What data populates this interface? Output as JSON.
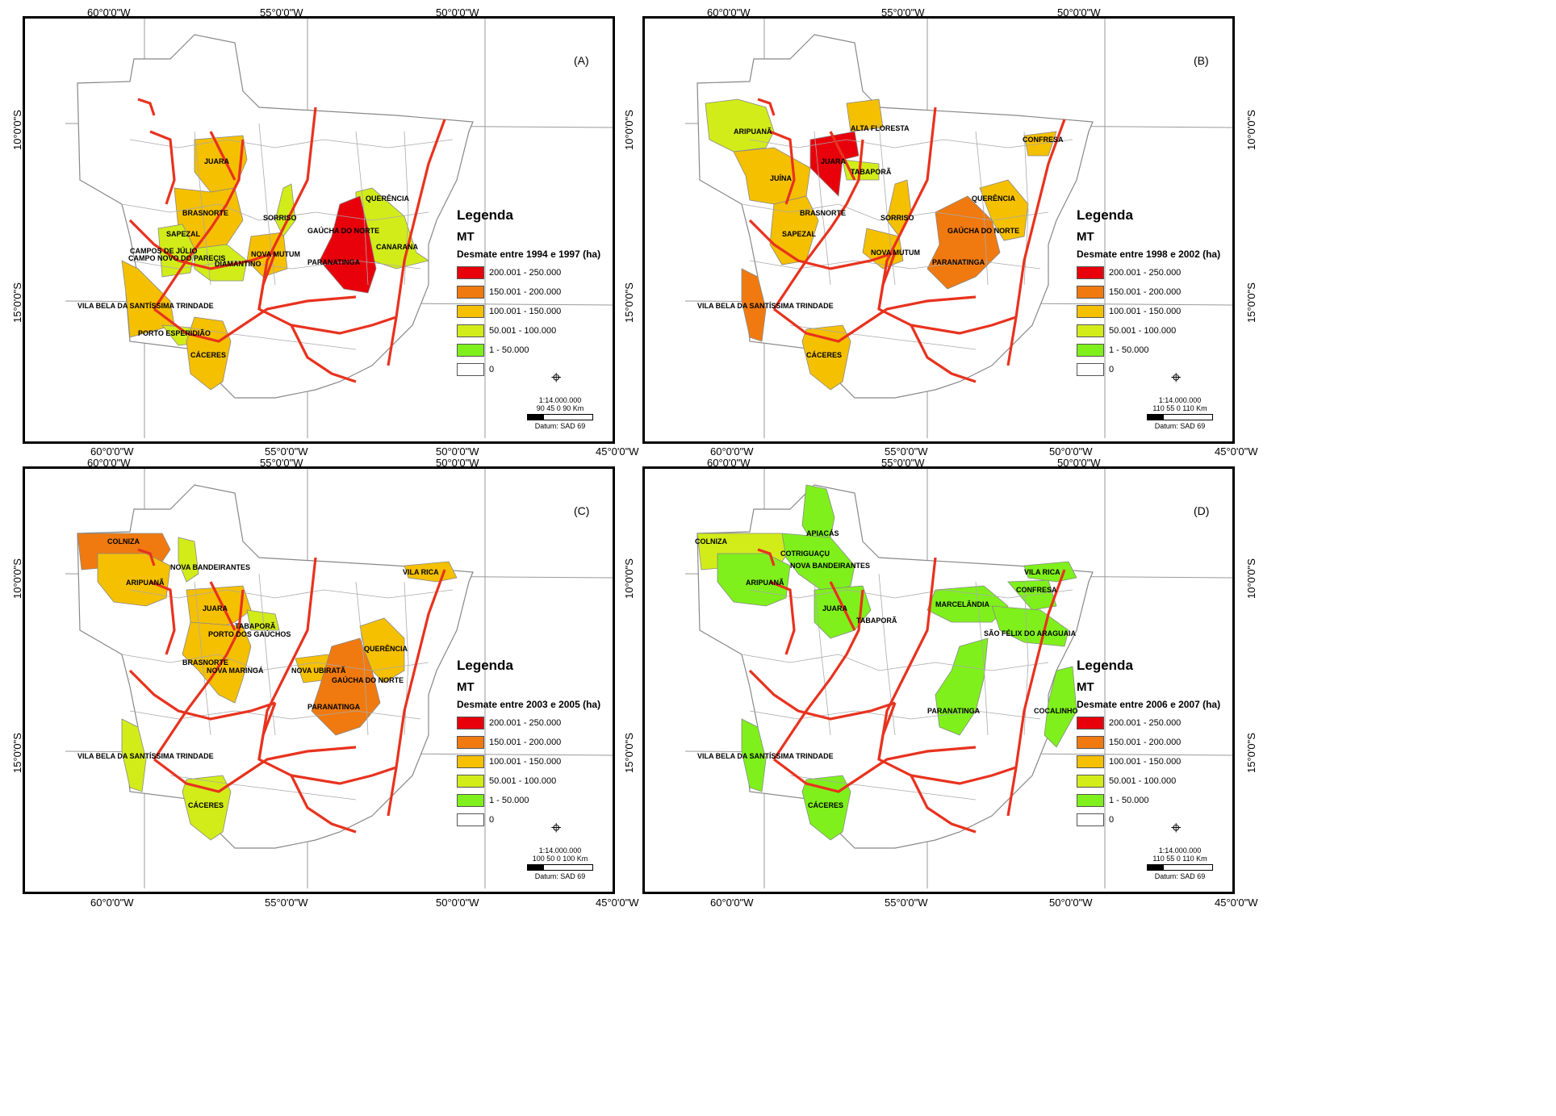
{
  "coordinates": {
    "top_left": [
      "60°0'0\"W",
      "55°0'0\"W",
      "50°0'0\"W"
    ],
    "top_right": [
      "60°0'0\"W",
      "55°0'0\"W",
      "50°0'0\"W"
    ],
    "mid_left": [
      "60°0'0\"W",
      "55°0'0\"W",
      "50°0'0\"W"
    ],
    "mid_right": [
      "60°0'0\"W",
      "55°0'0\"W",
      "50°0'0\"W",
      "45°0'0\"W"
    ],
    "mid_left_extra": "45°0'0\"W",
    "bottom_left": [
      "60°0'0\"W",
      "55°0'0\"W",
      "50°0'0\"W",
      "45°0'0\"W"
    ],
    "bottom_right": [
      "60°0'0\"W",
      "55°0'0\"W",
      "50°0'0\"W",
      "45°0'0\"W"
    ],
    "lat_10": "10°0'0\"S",
    "lat_15": "15°0'0\"S"
  },
  "legend_classes": [
    {
      "label": "200.001 - 250.000",
      "color": "#e8000b"
    },
    {
      "label": "150.001 - 200.000",
      "color": "#f07a10"
    },
    {
      "label": "100.001 - 150.000",
      "color": "#f5c000"
    },
    {
      "label": "50.001 - 100.000",
      "color": "#d2ec1a"
    },
    {
      "label": "1 - 50.000",
      "color": "#7ff01c"
    },
    {
      "label": "0",
      "color": "#ffffff"
    }
  ],
  "panels": [
    {
      "id": "A",
      "label": "(A)",
      "legend_title": "Legenda",
      "legend_sub": "MT",
      "legend_desc": "Desmate entre 1994 e 1997 (ha)",
      "scale_ratio": "1:14.000.000",
      "scale_ticks": "90  45   0          90 Km",
      "datum": "Datum: SAD 69",
      "municipalities": [
        "JUARA",
        "BRASNORTE",
        "SAPEZAL",
        "CAMPOS DE JÚLIO",
        "CAMPO NOVO DO PARECIS",
        "DIAMANTINO",
        "NOVA MUTUM",
        "SORRISO",
        "QUERÊNCIA",
        "GAÚCHA DO NORTE",
        "CANARANA",
        "PARANATINGA",
        "VILA BELA DA SANTÍSSIMA TRINDADE",
        "PORTO ESPERIDIÃO",
        "CÁCERES"
      ]
    },
    {
      "id": "B",
      "label": "(B)",
      "legend_title": "Legenda",
      "legend_sub": "MT",
      "legend_desc": "Desmate entre 1998 e 2002 (ha)",
      "scale_ratio": "1:14.000.000",
      "scale_ticks": "110  55   0          110 Km",
      "datum": "Datum: SAD 69",
      "municipalities": [
        "ARIPUANÃ",
        "ALTA FLORESTA",
        "CONFRESA",
        "JUARA",
        "JUÍNA",
        "TABAPORÃ",
        "BRASNORTE",
        "SORRISO",
        "QUERÊNCIA",
        "GAÚCHA DO NORTE",
        "SAPEZAL",
        "NOVA MUTUM",
        "PARANATINGA",
        "VILA BELA DA SANTÍSSIMA TRINDADE",
        "CÁCERES"
      ]
    },
    {
      "id": "C",
      "label": "(C)",
      "legend_title": "Legenda",
      "legend_sub": "MT",
      "legend_desc": "Desmate entre 2003 e 2005 (ha)",
      "scale_ratio": "1:14.000.000",
      "scale_ticks": "100  50   0          100 Km",
      "datum": "Datum: SAD 69",
      "municipalities": [
        "COLNIZA",
        "NOVA BANDEIRANTES",
        "ARIPUANÃ",
        "VILA RICA",
        "JUARA",
        "TABAPORÃ",
        "PORTO DOS GAÚCHOS",
        "QUERÊNCIA",
        "BRASNORTE",
        "NOVA MARINGÁ",
        "NOVA UBIRATÃ",
        "GAÚCHA DO NORTE",
        "PARANATINGA",
        "VILA BELA DA SANTÍSSIMA TRINDADE",
        "CÁCERES"
      ]
    },
    {
      "id": "D",
      "label": "(D)",
      "legend_title": "Legenda",
      "legend_sub": "MT",
      "legend_desc": "Desmate entre 2006 e 2007 (ha)",
      "scale_ratio": "1:14.000.000",
      "scale_ticks": "110  55   0          110 Km",
      "datum": "Datum: SAD 69",
      "municipalities": [
        "APIACÁS",
        "COLNIZA",
        "COTRIGUAÇU",
        "NOVA BANDEIRANTES",
        "ARIPUANÃ",
        "VILA RICA",
        "CONFRESA",
        "JUARA",
        "TABAPORÃ",
        "MARCELÂNDIA",
        "SÃO FÉLIX DO ARAGUAIA",
        "PARANATINGA",
        "COCALINHO",
        "VILA BELA DA SANTÍSSIMA TRINDADE",
        "CÁCERES"
      ]
    }
  ]
}
